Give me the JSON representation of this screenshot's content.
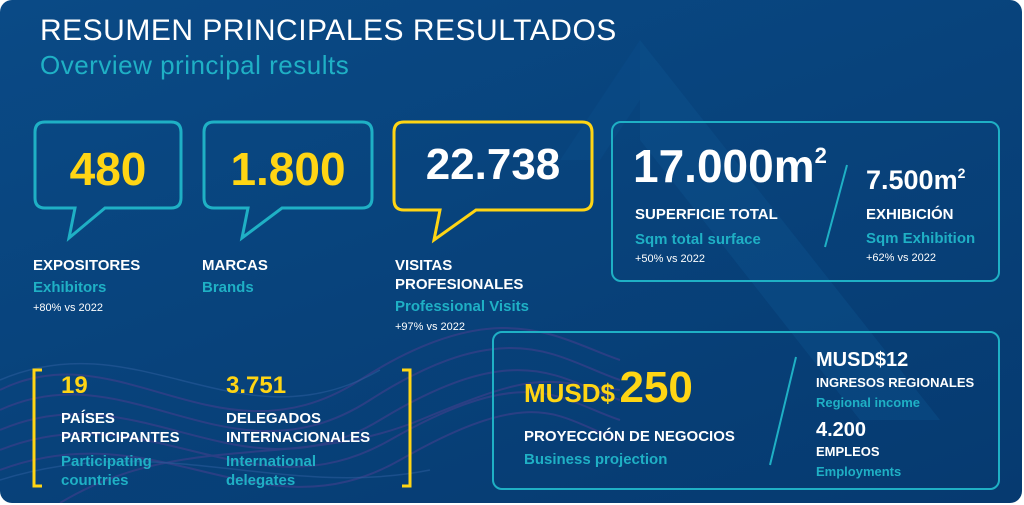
{
  "header": {
    "title": "RESUMEN PRINCIPALES RESULTADOS",
    "subtitle": "Overview principal results"
  },
  "stats": {
    "exhibitors": {
      "value": "480",
      "label": "EXPOSITORES",
      "en": "Exhibitors",
      "change": "+80% vs 2022"
    },
    "brands": {
      "value": "1.800",
      "label": "MARCAS",
      "en": "Brands"
    },
    "visits": {
      "value": "22.738",
      "label_1": "VISITAS",
      "label_2": "PROFESIONALES",
      "en": "Professional Visits",
      "change": "+97% vs 2022"
    },
    "surface": {
      "value": "17.000m",
      "sup": "2",
      "label": "SUPERFICIE TOTAL",
      "en": "Sqm total surface",
      "change": "+50% vs 2022"
    },
    "exhibition": {
      "value": "7.500m",
      "sup": "2",
      "label": "EXHIBICIÓN",
      "en": "Sqm Exhibition",
      "change": "+62% vs 2022"
    },
    "countries": {
      "value": "19",
      "label_1": "PAÍSES",
      "label_2": "PARTICIPANTES",
      "en_1": "Participating",
      "en_2": "countries"
    },
    "delegates": {
      "value": "3.751",
      "label_1": "DELEGADOS",
      "label_2": "INTERNACIONALES",
      "en_1": "International",
      "en_2": "delegates"
    },
    "business": {
      "prefix": "MUSD$",
      "value": "250",
      "label": "PROYECCIÓN DE NEGOCIOS",
      "en": "Business projection"
    },
    "regional_income": {
      "value": "MUSD$12",
      "label": "INGRESOS REGIONALES",
      "en": "Regional income"
    },
    "employments": {
      "value": "4.200",
      "label": "EMPLEOS",
      "en": "Employments"
    }
  },
  "colors": {
    "background": "#08437c",
    "accent_yellow": "#ffd514",
    "accent_teal": "#1fb0c5",
    "text": "#ffffff"
  }
}
